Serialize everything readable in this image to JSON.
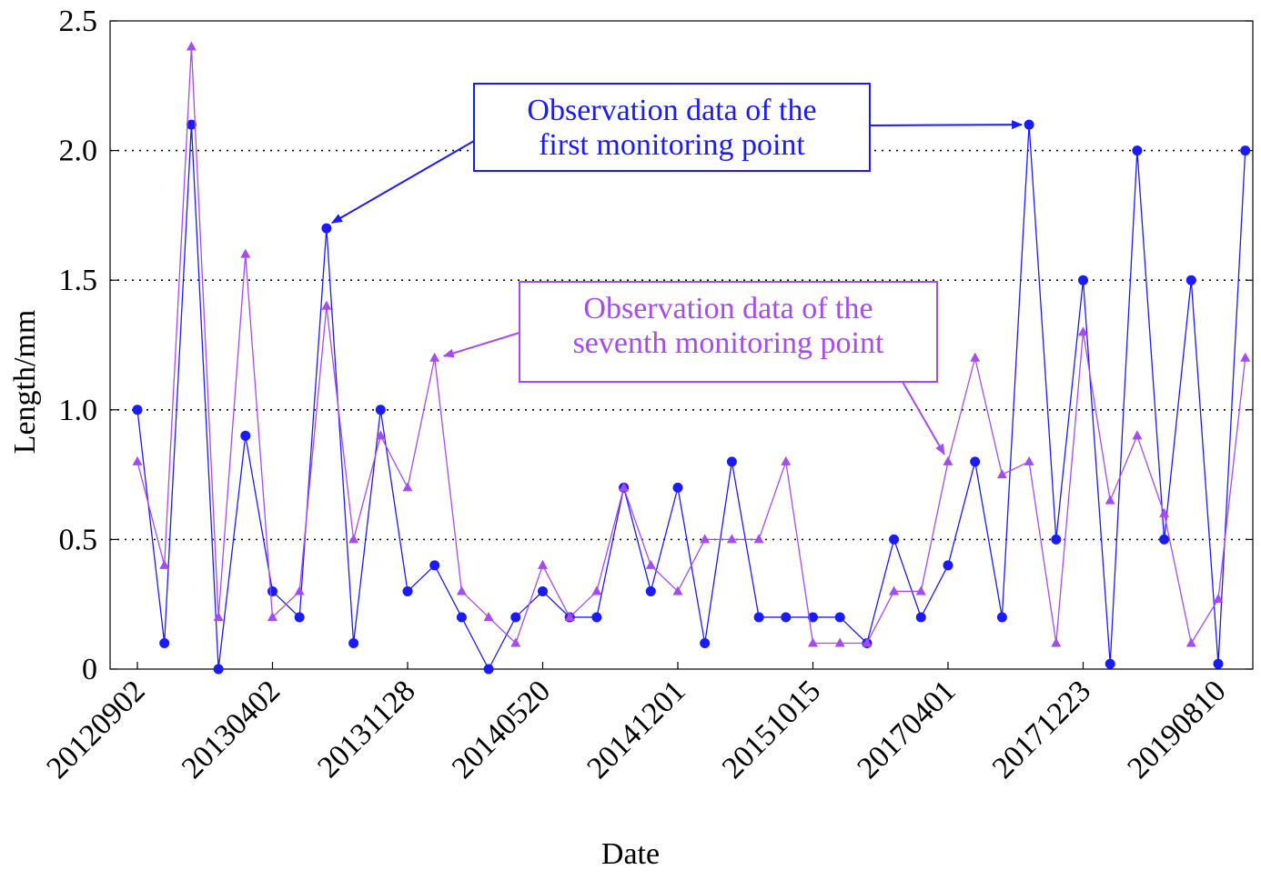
{
  "colors": {
    "series1": "#1a1aff",
    "series2": "#a64bf4",
    "grid": "#000000",
    "axis": "#000000",
    "background": "#ffffff"
  },
  "chart_data": {
    "type": "line",
    "title": "",
    "xlabel": "Date",
    "ylabel": "Length/mm",
    "ylim": [
      0,
      2.5
    ],
    "y_ticks": [
      "0",
      "0.5",
      "1.0",
      "1.5",
      "2.0",
      "2.5"
    ],
    "x_tick_labels": [
      "20120902",
      "20130402",
      "20131128",
      "20140520",
      "20141201",
      "20151015",
      "20170401",
      "20171223",
      "20190810"
    ],
    "x_tick_positions": [
      0,
      5,
      10,
      15,
      20,
      25,
      30,
      35,
      40
    ],
    "grid": "horizontal dotted",
    "legend": "none",
    "series": [
      {
        "marker": "circle",
        "values": [
          1.0,
          0.1,
          2.1,
          0.0,
          0.9,
          0.3,
          0.2,
          1.7,
          0.1,
          1.0,
          0.3,
          0.4,
          0.2,
          0.0,
          0.2,
          0.3,
          0.2,
          0.2,
          0.7,
          0.3,
          0.7,
          0.1,
          0.8,
          0.2,
          0.2,
          0.2,
          0.2,
          0.1,
          0.5,
          0.2,
          0.4,
          0.8,
          0.2,
          2.1,
          0.5,
          1.5,
          0.02,
          2.0,
          0.5,
          1.5,
          0.02,
          2.0
        ]
      },
      {
        "marker": "triangle",
        "values": [
          0.8,
          0.4,
          2.4,
          0.2,
          1.6,
          0.2,
          0.3,
          1.4,
          0.5,
          0.9,
          0.7,
          1.2,
          0.3,
          0.2,
          0.1,
          0.4,
          0.2,
          0.3,
          0.7,
          0.4,
          0.3,
          0.5,
          0.5,
          0.5,
          0.8,
          0.1,
          0.1,
          0.1,
          0.3,
          0.3,
          0.8,
          1.2,
          0.75,
          0.8,
          0.1,
          1.3,
          0.65,
          0.9,
          0.6,
          0.1,
          0.27,
          1.2
        ]
      }
    ],
    "annotations": [
      {
        "series_index": 0,
        "lines": [
          "Observation data of the",
          "first monitoring point"
        ]
      },
      {
        "series_index": 1,
        "lines": [
          "Observation data of the",
          "seventh monitoring point"
        ]
      }
    ]
  }
}
